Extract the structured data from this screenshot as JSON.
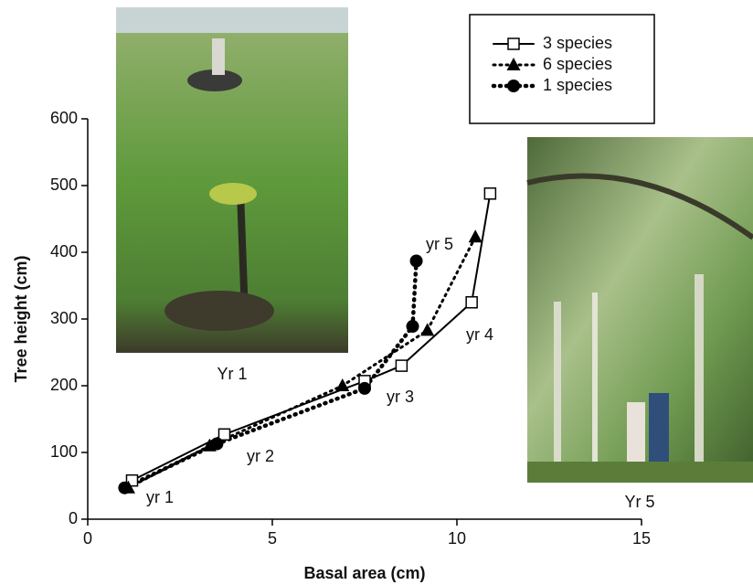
{
  "chart_data": {
    "type": "line",
    "x_label": "Basal area (cm)",
    "y_label": "Tree height (cm)",
    "xlim": [
      0,
      15
    ],
    "xticks": [
      0,
      5,
      10,
      15
    ],
    "ylim": [
      0,
      600
    ],
    "yticks": [
      0,
      100,
      200,
      300,
      400,
      500,
      600
    ],
    "legend": "upper right",
    "series": [
      {
        "name": "3 species",
        "color": "#000000",
        "marker": "square",
        "dash": "solid",
        "x": [
          1.2,
          3.7,
          7.5,
          8.5,
          10.4,
          10.9
        ],
        "values": [
          58,
          127,
          207,
          230,
          325,
          488
        ]
      },
      {
        "name": "6 species",
        "color": "#000000",
        "marker": "triangle",
        "dash": "dotted",
        "x": [
          1.1,
          3.3,
          6.9,
          9.2,
          10.5
        ],
        "values": [
          47,
          110,
          200,
          283,
          423
        ]
      },
      {
        "name": "1 species",
        "color": "#000000",
        "marker": "circle",
        "dash": "dotted",
        "x": [
          1.0,
          3.5,
          7.5,
          8.8,
          8.9
        ],
        "values": [
          47,
          113,
          196,
          289,
          387
        ]
      }
    ],
    "annotations": [
      {
        "text": "yr 1"
      },
      {
        "text": "yr 2"
      },
      {
        "text": "yr 3"
      },
      {
        "text": "yr 4"
      },
      {
        "text": "yr 5"
      }
    ]
  },
  "photos": [
    {
      "caption": "Yr 1"
    },
    {
      "caption": "Yr 5"
    }
  ]
}
